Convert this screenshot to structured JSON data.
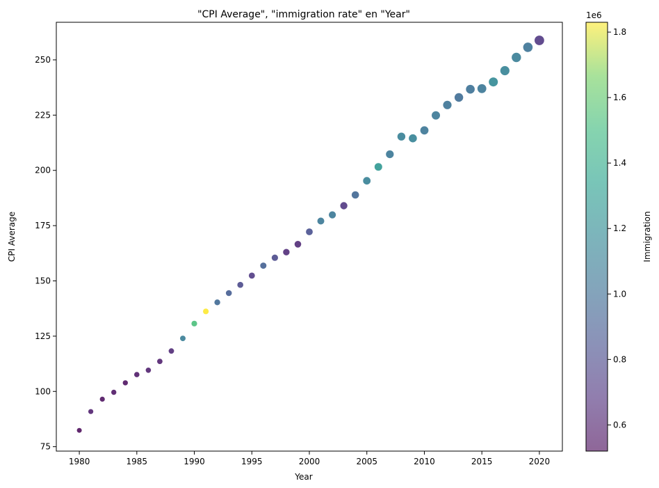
{
  "chart_data": {
    "type": "scatter",
    "title": "\"CPI Average\", \"immigration rate\" en \"Year\"",
    "xlabel": "Year",
    "ylabel": "CPI Average",
    "xlim": [
      1978,
      2022
    ],
    "ylim": [
      73,
      267
    ],
    "x_ticks": [
      1980,
      1985,
      1990,
      1995,
      2000,
      2005,
      2010,
      2015,
      2020
    ],
    "y_ticks": [
      75,
      100,
      125,
      150,
      175,
      200,
      225,
      250
    ],
    "grid": false,
    "colorbar": {
      "label": "Immigration",
      "offset_label": "1e6",
      "colormap": "viridis",
      "alpha": 0.6,
      "range": [
        0.52,
        1.83
      ],
      "ticks": [
        0.6,
        0.8,
        1.0,
        1.2,
        1.4,
        1.6,
        1.8
      ]
    },
    "size_encoding": "Immigration rate (marker size)",
    "x": [
      1980,
      1981,
      1982,
      1983,
      1984,
      1985,
      1986,
      1987,
      1988,
      1989,
      1990,
      1991,
      1992,
      1993,
      1994,
      1995,
      1996,
      1997,
      1998,
      1999,
      2000,
      2001,
      2002,
      2003,
      2004,
      2005,
      2006,
      2007,
      2008,
      2009,
      2010,
      2011,
      2012,
      2013,
      2014,
      2015,
      2016,
      2017,
      2018,
      2019,
      2020
    ],
    "y": [
      82.4,
      90.9,
      96.5,
      99.6,
      103.9,
      107.6,
      109.6,
      113.6,
      118.3,
      124.0,
      130.7,
      136.2,
      140.3,
      144.5,
      148.2,
      152.4,
      156.9,
      160.5,
      163.0,
      166.6,
      172.2,
      177.1,
      179.9,
      184.0,
      188.9,
      195.3,
      201.6,
      207.3,
      215.3,
      214.5,
      218.1,
      224.9,
      229.6,
      233.0,
      236.7,
      237.0,
      240.0,
      245.1,
      251.1,
      255.7,
      258.8
    ],
    "color_values": [
      0.52,
      0.6,
      0.54,
      0.56,
      0.54,
      0.57,
      0.6,
      0.6,
      0.64,
      1.09,
      1.53,
      1.83,
      0.97,
      0.9,
      0.8,
      0.72,
      0.92,
      0.8,
      0.65,
      0.64,
      0.84,
      1.06,
      1.06,
      0.7,
      0.96,
      1.12,
      1.27,
      1.05,
      1.11,
      1.13,
      1.04,
      1.06,
      1.03,
      0.99,
      1.02,
      1.05,
      1.18,
      1.13,
      1.1,
      1.03,
      0.71
    ],
    "size_values": [
      3.5,
      3.6,
      3.6,
      3.7,
      3.7,
      3.8,
      3.8,
      3.9,
      3.9,
      4.0,
      4.1,
      4.1,
      4.2,
      4.3,
      4.3,
      4.4,
      4.5,
      4.6,
      4.7,
      4.8,
      4.9,
      5.0,
      5.1,
      5.2,
      5.3,
      5.4,
      5.5,
      5.6,
      5.7,
      5.8,
      5.9,
      6.0,
      6.1,
      6.2,
      6.3,
      6.4,
      6.5,
      6.6,
      6.7,
      6.8,
      6.9
    ]
  }
}
